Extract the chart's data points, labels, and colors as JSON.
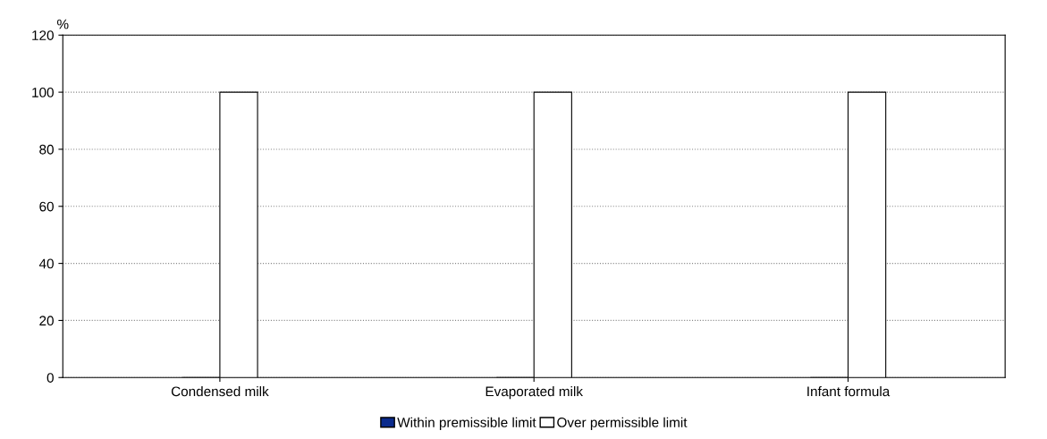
{
  "chart_data": {
    "type": "bar",
    "ylabel": "%",
    "categories": [
      "Condensed milk",
      "Evaporated milk",
      "Infant formula"
    ],
    "series": [
      {
        "name": "Within premissible limit",
        "color": "#0a2a8c",
        "values": [
          0,
          0,
          0
        ]
      },
      {
        "name": "Over permissible limit",
        "color": "#ffffff",
        "values": [
          100,
          100,
          100
        ]
      }
    ],
    "ylim": [
      0,
      120
    ],
    "yticks": [
      0,
      20,
      40,
      60,
      80,
      100,
      120
    ],
    "grid": "y",
    "legend": "bottom"
  }
}
